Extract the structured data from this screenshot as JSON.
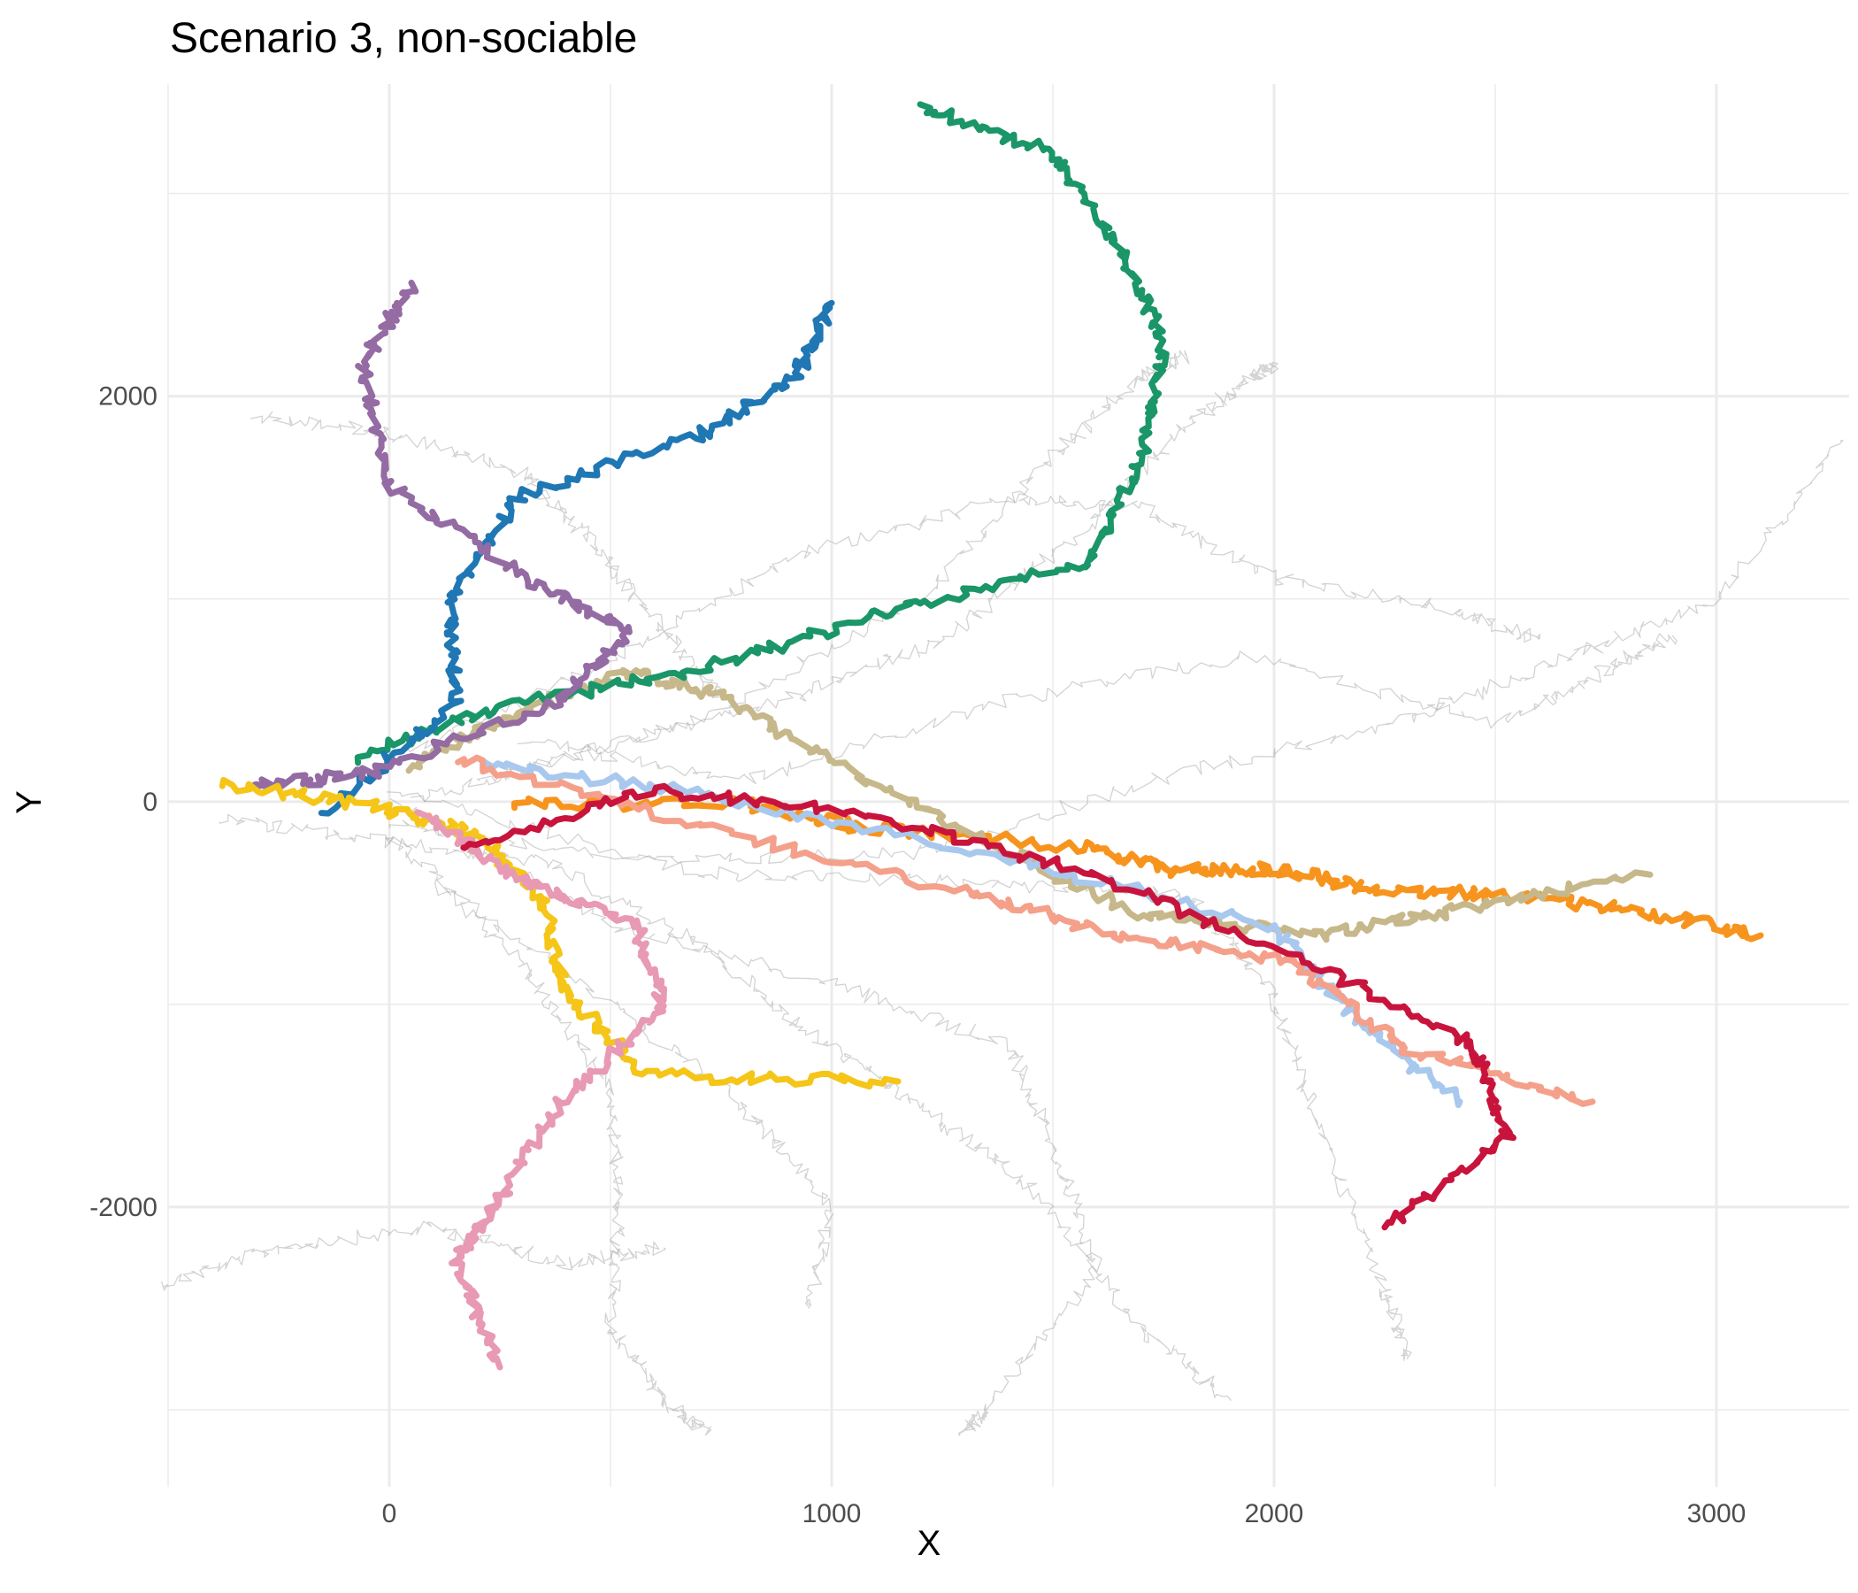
{
  "chart_data": {
    "type": "line",
    "title": "Scenario 3, non-sociable",
    "xlabel": "X",
    "ylabel": "Y",
    "xlim": [
      -500,
      3300
    ],
    "ylim": [
      -3380,
      3540
    ],
    "x_ticks": [
      0,
      1000,
      2000,
      3000
    ],
    "x_tick_labels": [
      "0",
      "1000",
      "2000",
      "3000"
    ],
    "y_ticks": [
      2000,
      0,
      -2000
    ],
    "y_tick_labels": [
      "2000",
      "0",
      "-2000"
    ],
    "grid": true,
    "legend": "none",
    "highlighted_series": [
      {
        "color": "#F7941D",
        "points": [
          [
            270,
            -10
          ],
          [
            800,
            -10
          ],
          [
            1050,
            -120
          ],
          [
            1550,
            -220
          ],
          [
            1780,
            -340
          ],
          [
            2000,
            -330
          ],
          [
            2200,
            -420
          ],
          [
            2500,
            -460
          ],
          [
            2800,
            -530
          ],
          [
            3100,
            -660
          ]
        ]
      },
      {
        "color": "#C6B88A",
        "points": [
          [
            40,
            180
          ],
          [
            300,
            450
          ],
          [
            550,
            640
          ],
          [
            750,
            520
          ],
          [
            1000,
            200
          ],
          [
            1300,
            -150
          ],
          [
            1700,
            -560
          ],
          [
            2100,
            -660
          ],
          [
            2400,
            -540
          ],
          [
            2850,
            -360
          ]
        ]
      },
      {
        "color": "#1A9668",
        "points": [
          [
            -80,
            220
          ],
          [
            250,
            470
          ],
          [
            700,
            650
          ],
          [
            1150,
            950
          ],
          [
            1580,
            1170
          ],
          [
            1700,
            1690
          ],
          [
            1750,
            2270
          ],
          [
            1650,
            2730
          ],
          [
            1500,
            3200
          ],
          [
            1200,
            3440
          ]
        ]
      },
      {
        "color": "#1F77B4",
        "points": [
          [
            -150,
            -60
          ],
          [
            150,
            480
          ],
          [
            140,
            1030
          ],
          [
            300,
            1520
          ],
          [
            700,
            1810
          ],
          [
            920,
            2100
          ],
          [
            1000,
            2460
          ]
        ]
      },
      {
        "color": "#946BA3",
        "points": [
          [
            -310,
            70
          ],
          [
            -50,
            140
          ],
          [
            390,
            500
          ],
          [
            540,
            840
          ],
          [
            320,
            1100
          ],
          [
            0,
            1550
          ],
          [
            -60,
            2150
          ],
          [
            50,
            2560
          ]
        ]
      },
      {
        "color": "#F5C518",
        "points": [
          [
            -380,
            90
          ],
          [
            0,
            -40
          ],
          [
            190,
            -150
          ],
          [
            350,
            -500
          ],
          [
            400,
            -940
          ],
          [
            580,
            -1350
          ],
          [
            1150,
            -1380
          ]
        ]
      },
      {
        "color": "#E899B4",
        "points": [
          [
            70,
            -60
          ],
          [
            300,
            -390
          ],
          [
            560,
            -610
          ],
          [
            620,
            -1020
          ],
          [
            380,
            -1500
          ],
          [
            230,
            -2020
          ],
          [
            150,
            -2250
          ],
          [
            250,
            -2790
          ]
        ]
      },
      {
        "color": "#A8C8EE",
        "points": [
          [
            210,
            190
          ],
          [
            700,
            40
          ],
          [
            1400,
            -280
          ],
          [
            2000,
            -620
          ],
          [
            2200,
            -1100
          ],
          [
            2420,
            -1480
          ]
        ]
      },
      {
        "color": "#F4A08A",
        "points": [
          [
            150,
            220
          ],
          [
            600,
            -60
          ],
          [
            1300,
            -450
          ],
          [
            1650,
            -660
          ],
          [
            2050,
            -800
          ],
          [
            2300,
            -1220
          ],
          [
            2720,
            -1480
          ]
        ]
      },
      {
        "color": "#C8143C",
        "points": [
          [
            160,
            -230
          ],
          [
            600,
            60
          ],
          [
            1100,
            -70
          ],
          [
            1600,
            -360
          ],
          [
            2100,
            -810
          ],
          [
            2450,
            -1200
          ],
          [
            2530,
            -1660
          ],
          [
            2250,
            -2100
          ]
        ]
      }
    ],
    "background_series": [
      {
        "color": "#9E9E9E",
        "points": [
          [
            -520,
            -2380
          ],
          [
            -250,
            -2200
          ],
          [
            100,
            -2100
          ],
          [
            400,
            -2280
          ],
          [
            620,
            -2200
          ]
        ]
      },
      {
        "color": "#9E9E9E",
        "points": [
          [
            -400,
            -80
          ],
          [
            0,
            -200
          ],
          [
            350,
            -300
          ],
          [
            700,
            -700
          ],
          [
            950,
            -1150
          ],
          [
            1200,
            -1500
          ],
          [
            1450,
            -1900
          ],
          [
            1700,
            -2600
          ],
          [
            1900,
            -2950
          ]
        ]
      },
      {
        "color": "#9E9E9E",
        "points": [
          [
            -300,
            1900
          ],
          [
            0,
            1820
          ],
          [
            300,
            1620
          ],
          [
            450,
            1300
          ],
          [
            600,
            900
          ],
          [
            750,
            500
          ]
        ]
      },
      {
        "color": "#9E9E9E",
        "points": [
          [
            50,
            0
          ],
          [
            450,
            250
          ],
          [
            900,
            500
          ],
          [
            1250,
            800
          ],
          [
            1550,
            1300
          ],
          [
            1800,
            1850
          ],
          [
            1950,
            2100
          ],
          [
            2000,
            2150
          ]
        ]
      },
      {
        "color": "#9E9E9E",
        "points": [
          [
            0,
            -100
          ],
          [
            600,
            -300
          ],
          [
            1200,
            -250
          ],
          [
            1800,
            150
          ],
          [
            2300,
            400
          ],
          [
            2650,
            700
          ],
          [
            3000,
            1000
          ],
          [
            3280,
            1780
          ]
        ]
      },
      {
        "color": "#9E9E9E",
        "points": [
          [
            0,
            0
          ],
          [
            500,
            -600
          ],
          [
            1000,
            -900
          ],
          [
            1400,
            -1200
          ],
          [
            1500,
            -1700
          ],
          [
            1600,
            -2300
          ],
          [
            1350,
            -3000
          ],
          [
            1300,
            -3100
          ]
        ]
      },
      {
        "color": "#9E9E9E",
        "points": [
          [
            0,
            -150
          ],
          [
            300,
            -800
          ],
          [
            500,
            -1400
          ],
          [
            520,
            -2000
          ],
          [
            500,
            -2600
          ],
          [
            640,
            -3000
          ],
          [
            720,
            -3100
          ]
        ]
      },
      {
        "color": "#9E9E9E",
        "points": [
          [
            0,
            200
          ],
          [
            500,
            700
          ],
          [
            900,
            1200
          ],
          [
            1400,
            1500
          ],
          [
            1700,
            1450
          ],
          [
            2000,
            1100
          ],
          [
            2400,
            950
          ],
          [
            2600,
            800
          ]
        ]
      },
      {
        "color": "#9E9E9E",
        "points": [
          [
            100,
            -400
          ],
          [
            500,
            -1000
          ],
          [
            800,
            -1500
          ],
          [
            1000,
            -2000
          ],
          [
            950,
            -2500
          ]
        ]
      },
      {
        "color": "#9E9E9E",
        "points": [
          [
            200,
            100
          ],
          [
            700,
            400
          ],
          [
            1200,
            1000
          ],
          [
            1500,
            1700
          ],
          [
            1700,
            2100
          ],
          [
            1800,
            2200
          ]
        ]
      },
      {
        "color": "#9E9E9E",
        "points": [
          [
            0,
            50
          ],
          [
            700,
            -350
          ],
          [
            1300,
            -400
          ],
          [
            1800,
            -450
          ],
          [
            2000,
            -950
          ],
          [
            2100,
            -1600
          ],
          [
            2250,
            -2400
          ],
          [
            2300,
            -2750
          ]
        ]
      },
      {
        "color": "#9E9E9E",
        "points": [
          [
            300,
            300
          ],
          [
            800,
            100
          ],
          [
            1400,
            500
          ],
          [
            1950,
            720
          ],
          [
            2500,
            380
          ],
          [
            2750,
            650
          ],
          [
            2900,
            820
          ]
        ]
      }
    ]
  }
}
